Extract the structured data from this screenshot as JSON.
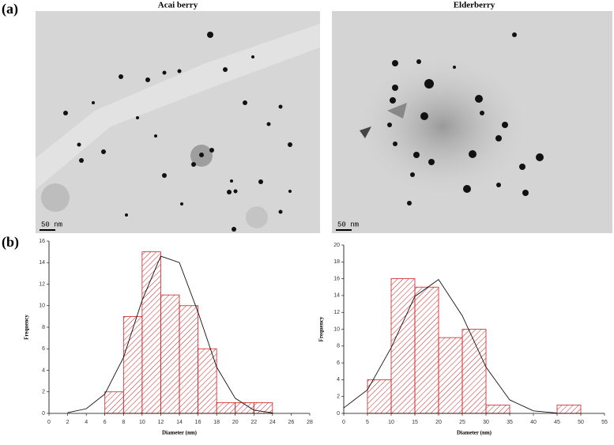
{
  "labels": {
    "a": "(a)",
    "b": "(b)"
  },
  "images": [
    {
      "title": "Acai berry",
      "scale": "50 nm"
    },
    {
      "title": "Elderberry",
      "scale": "50 nm"
    }
  ],
  "chart_data": [
    {
      "type": "histogram",
      "xlabel": "Diameter (nm)",
      "ylabel": "Frequency",
      "color": "#cc2222",
      "fit_color": "#111111",
      "bins": [
        6,
        8,
        10,
        12,
        14,
        16,
        18,
        20,
        22,
        24
      ],
      "counts": [
        2,
        9,
        15,
        11,
        10,
        6,
        1,
        1,
        1
      ],
      "fit": {
        "x": [
          2,
          4,
          6,
          8,
          10,
          12,
          14,
          16,
          18,
          20,
          22,
          24
        ],
        "values": [
          0.07,
          0.43,
          1.8,
          5.2,
          10.5,
          14.6,
          14.0,
          9.4,
          4.3,
          1.4,
          0.3,
          0.05
        ]
      },
      "xlim": [
        0,
        28
      ],
      "xticks": [
        0,
        2,
        4,
        6,
        8,
        10,
        12,
        14,
        16,
        18,
        20,
        22,
        24,
        26,
        28
      ],
      "ylim": [
        0,
        16
      ],
      "yticks": [
        0,
        2,
        4,
        6,
        8,
        10,
        12,
        14,
        16
      ]
    },
    {
      "type": "histogram",
      "xlabel": "Diameter (nm)",
      "ylabel": "Frequency",
      "color": "#cc2222",
      "fit_color": "#111111",
      "bins": [
        5,
        10,
        15,
        20,
        25,
        30,
        35,
        40,
        45,
        50
      ],
      "counts": [
        4,
        16,
        15,
        9,
        10,
        1,
        0,
        0,
        1
      ],
      "fit": {
        "x": [
          0,
          5,
          10,
          15,
          20,
          25,
          30,
          35,
          40,
          45
        ],
        "values": [
          0.65,
          2.8,
          7.8,
          13.9,
          15.9,
          11.6,
          5.5,
          1.6,
          0.3,
          0.04
        ]
      },
      "xlim": [
        0,
        55
      ],
      "xticks": [
        0,
        5,
        10,
        15,
        20,
        25,
        30,
        35,
        40,
        45,
        50,
        55
      ],
      "ylim": [
        0,
        20
      ],
      "yticks": [
        0,
        2,
        4,
        6,
        8,
        10,
        12,
        14,
        16,
        18,
        20
      ]
    }
  ]
}
